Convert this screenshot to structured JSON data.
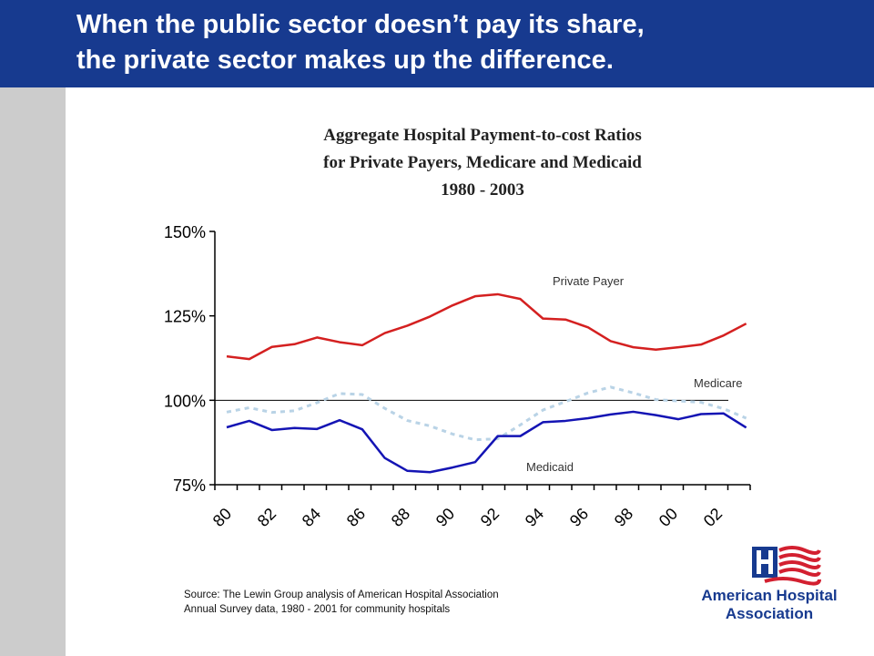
{
  "slide": {
    "headline_line1": "When the public sector doesn’t pay its share,",
    "headline_line2": "the private sector makes up the difference.",
    "source_line1": "Source: The Lewin Group analysis of American Hospital Association",
    "source_line2": "Annual Survey data, 1980 - 2001 for community hospitals",
    "logo_line1": "American Hospital",
    "logo_line2": "Association",
    "logo_icon": "hospital-flag-logo"
  },
  "colors": {
    "header": "#173a8f",
    "strip": "#cccccc",
    "private": "#d42020",
    "medicare": "#b9d3e6",
    "medicaid": "#1414b4",
    "logo_red": "#d32030",
    "logo_blue": "#173a8f"
  },
  "chart_data": {
    "type": "line",
    "title_line1": "Aggregate Hospital Payment-to-cost Ratios",
    "title_line2": "for Private Payers, Medicare and Medicaid",
    "title_line3": "1980 - 2003",
    "x": [
      1980,
      1981,
      1982,
      1983,
      1984,
      1985,
      1986,
      1987,
      1988,
      1989,
      1990,
      1991,
      1992,
      1993,
      1994,
      1995,
      1996,
      1997,
      1998,
      1999,
      2000,
      2001,
      2002,
      2003
    ],
    "x_tick_labels": [
      "80",
      "82",
      "84",
      "86",
      "88",
      "90",
      "92",
      "94",
      "96",
      "98",
      "00",
      "02"
    ],
    "y_tick_labels": [
      "75%",
      "100%",
      "125%",
      "150%"
    ],
    "y_ticks": [
      75,
      100,
      125,
      150
    ],
    "ylim": [
      75,
      150
    ],
    "reference_line": 100,
    "series": [
      {
        "name": "Private Payer",
        "style": "solid",
        "values": [
          113.0,
          112.2,
          115.8,
          116.6,
          118.6,
          117.2,
          116.3,
          119.9,
          122.1,
          124.8,
          128.1,
          130.8,
          131.4,
          130.0,
          124.2,
          123.9,
          121.6,
          117.5,
          115.7,
          115.0,
          115.7,
          116.5,
          119.2,
          122.7
        ]
      },
      {
        "name": "Medicare",
        "style": "dashed",
        "values": [
          96.5,
          97.8,
          96.4,
          96.9,
          99.3,
          102.0,
          101.7,
          97.6,
          94.0,
          92.4,
          90.0,
          88.3,
          88.6,
          92.7,
          97.1,
          99.6,
          102.2,
          103.9,
          102.2,
          100.2,
          99.8,
          99.4,
          97.5,
          94.7
        ]
      },
      {
        "name": "Medicaid",
        "style": "solid",
        "values": [
          92.0,
          93.9,
          91.2,
          91.8,
          91.5,
          94.1,
          91.4,
          82.9,
          79.1,
          78.7,
          80.1,
          81.7,
          89.4,
          89.4,
          93.5,
          93.9,
          94.7,
          95.8,
          96.6,
          95.6,
          94.4,
          95.9,
          96.1,
          91.9
        ]
      }
    ],
    "grid": false,
    "legend": "inline labels"
  }
}
